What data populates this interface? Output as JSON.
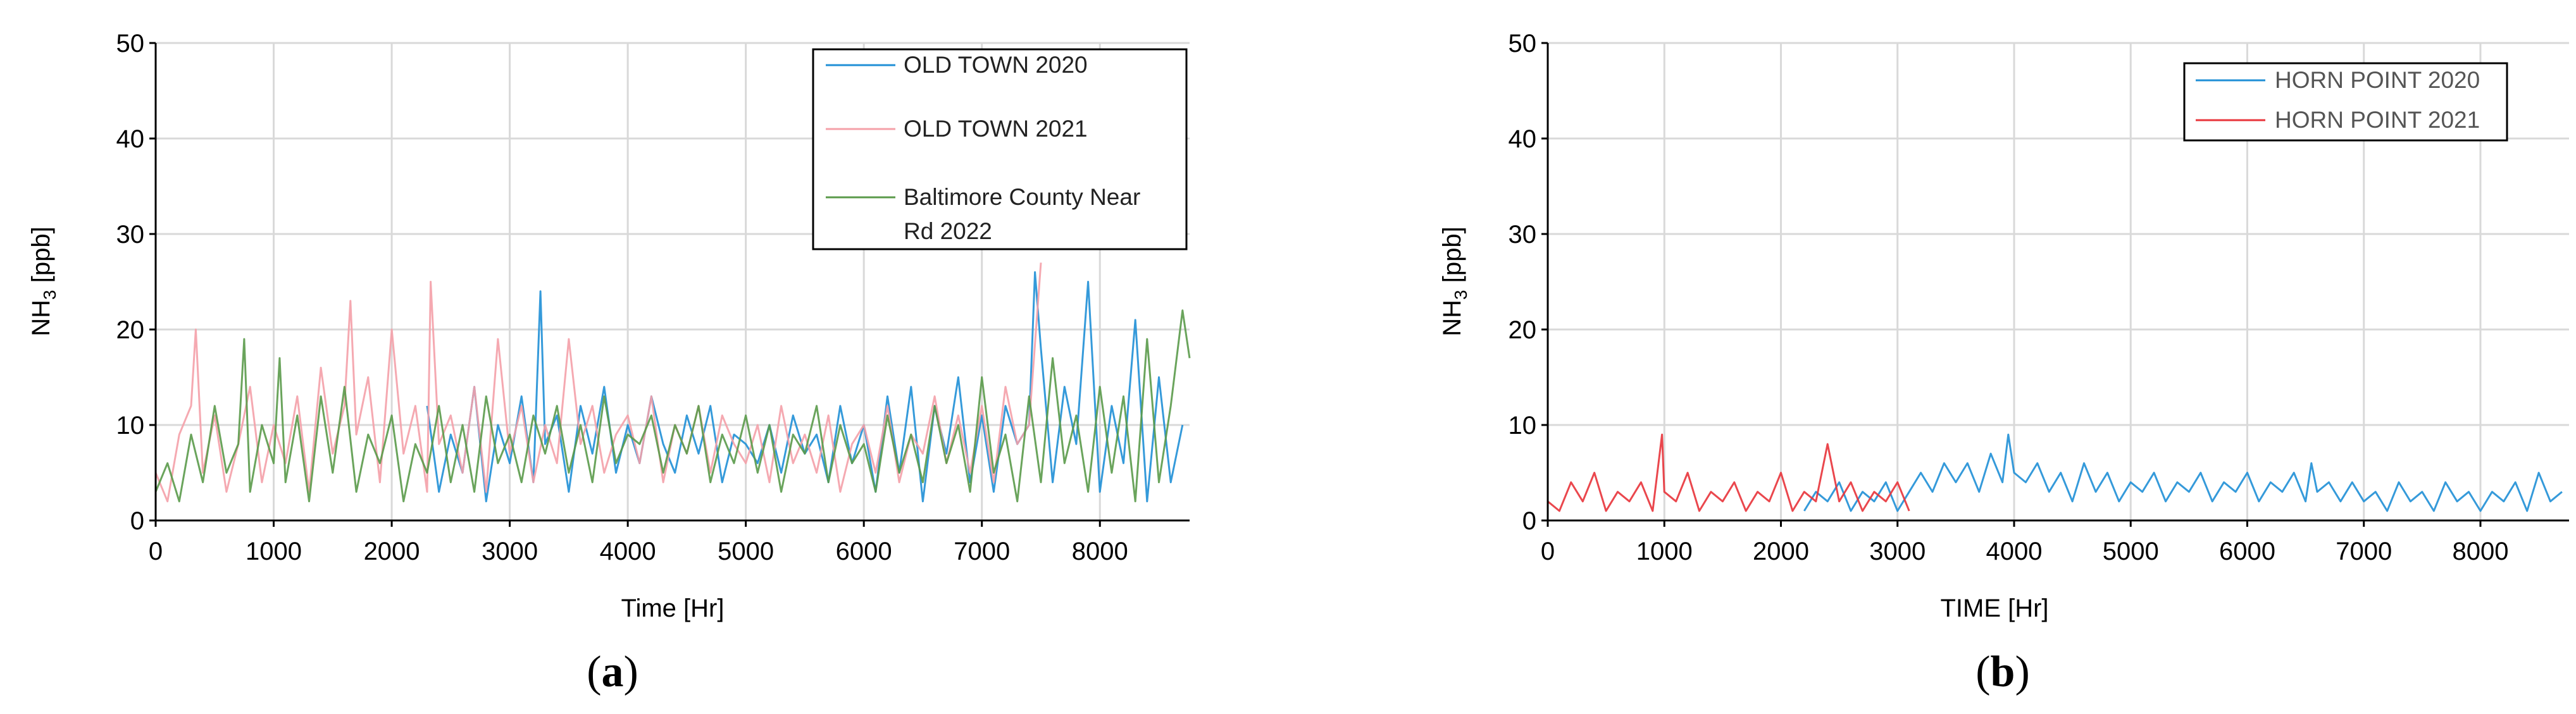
{
  "colors": {
    "old_town_2020": "#1f8fd6",
    "old_town_2021": "#f4a0a8",
    "baltimore_2022": "#5a9a4a",
    "horn_point_2020": "#1f8fd6",
    "horn_point_2021": "#e8333a",
    "grid": "#d9d9d9",
    "axis": "#000000"
  },
  "panels": [
    {
      "caption_open": "(",
      "caption_letter": "a",
      "caption_close": ")",
      "ylabel_main": "NH",
      "ylabel_sub": "3",
      "ylabel_unit": " [ppb]",
      "legend": [
        "OLD TOWN 2020",
        "OLD TOWN 2021",
        "Baltimore County Near",
        "Rd 2022"
      ]
    },
    {
      "caption_open": "(",
      "caption_letter": "b",
      "caption_close": ")",
      "ylabel_main": "NH",
      "ylabel_sub": "3",
      "ylabel_unit": " [ppb]",
      "legend": [
        "HORN POINT 2020",
        "HORN POINT 2021"
      ]
    }
  ],
  "chart_data": [
    {
      "type": "line",
      "xlabel": "Time [Hr]",
      "ylabel": "NH3 [ppb]",
      "xlim": [
        0,
        8760
      ],
      "ylim": [
        0,
        50
      ],
      "xticks": [
        0,
        1000,
        2000,
        3000,
        4000,
        5000,
        6000,
        7000,
        8000
      ],
      "yticks": [
        0,
        10,
        20,
        30,
        40,
        50
      ],
      "grid": true,
      "legend_position": "top-right",
      "series": [
        {
          "name": "OLD TOWN 2020",
          "color": "#1f8fd6",
          "x": [
            2300,
            2400,
            2500,
            2600,
            2700,
            2800,
            2900,
            3000,
            3100,
            3200,
            3260,
            3300,
            3400,
            3500,
            3600,
            3700,
            3800,
            3900,
            4000,
            4100,
            4200,
            4300,
            4400,
            4500,
            4600,
            4700,
            4800,
            4900,
            5000,
            5100,
            5200,
            5300,
            5400,
            5500,
            5600,
            5700,
            5800,
            5900,
            6000,
            6100,
            6200,
            6300,
            6400,
            6500,
            6600,
            6700,
            6800,
            6900,
            7000,
            7100,
            7200,
            7300,
            7400,
            7450,
            7500,
            7600,
            7700,
            7800,
            7900,
            8000,
            8100,
            8200,
            8300,
            8400,
            8500,
            8600,
            8700
          ],
          "y": [
            12,
            3,
            9,
            5,
            14,
            2,
            10,
            6,
            13,
            4,
            24,
            8,
            11,
            3,
            12,
            7,
            14,
            5,
            10,
            6,
            13,
            8,
            5,
            11,
            7,
            12,
            4,
            9,
            8,
            6,
            10,
            5,
            11,
            7,
            9,
            4,
            12,
            6,
            10,
            3,
            13,
            5,
            14,
            2,
            12,
            7,
            15,
            4,
            11,
            3,
            12,
            8,
            10,
            26,
            18,
            4,
            14,
            8,
            25,
            3,
            12,
            6,
            21,
            2,
            15,
            4,
            10
          ]
        },
        {
          "name": "OLD TOWN 2021",
          "color": "#f4a0a8",
          "x": [
            0,
            100,
            200,
            300,
            340,
            400,
            500,
            600,
            700,
            800,
            900,
            1000,
            1100,
            1200,
            1300,
            1400,
            1500,
            1600,
            1650,
            1700,
            1800,
            1900,
            2000,
            2100,
            2200,
            2300,
            2330,
            2400,
            2500,
            2600,
            2700,
            2800,
            2900,
            3000,
            3100,
            3200,
            3300,
            3400,
            3500,
            3600,
            3700,
            3800,
            3900,
            4000,
            4100,
            4200,
            4300,
            4400,
            4500,
            4600,
            4700,
            4800,
            4900,
            5000,
            5100,
            5200,
            5300,
            5400,
            5500,
            5600,
            5700,
            5800,
            5900,
            6000,
            6100,
            6200,
            6300,
            6400,
            6500,
            6600,
            6700,
            6800,
            6900,
            7000,
            7100,
            7200,
            7300,
            7400,
            7500
          ],
          "y": [
            5,
            2,
            9,
            12,
            20,
            5,
            11,
            3,
            8,
            14,
            4,
            10,
            6,
            13,
            3,
            16,
            7,
            12,
            23,
            9,
            15,
            4,
            20,
            7,
            12,
            3,
            25,
            8,
            11,
            5,
            14,
            3,
            19,
            7,
            12,
            4,
            10,
            6,
            19,
            8,
            12,
            5,
            9,
            11,
            6,
            13,
            4,
            10,
            7,
            12,
            5,
            11,
            8,
            6,
            10,
            4,
            12,
            6,
            9,
            5,
            11,
            3,
            8,
            10,
            5,
            12,
            4,
            9,
            7,
            13,
            6,
            11,
            5,
            12,
            4,
            14,
            8,
            10,
            27
          ]
        },
        {
          "name": "Baltimore County Near Rd 2022",
          "color": "#5a9a4a",
          "x": [
            0,
            100,
            200,
            300,
            400,
            500,
            600,
            700,
            750,
            800,
            900,
            1000,
            1050,
            1100,
            1200,
            1300,
            1400,
            1500,
            1600,
            1700,
            1800,
            1900,
            2000,
            2100,
            2200,
            2300,
            2400,
            2500,
            2600,
            2700,
            2800,
            2900,
            3000,
            3100,
            3200,
            3300,
            3400,
            3500,
            3600,
            3700,
            3800,
            3900,
            4000,
            4100,
            4200,
            4300,
            4400,
            4500,
            4600,
            4700,
            4800,
            4900,
            5000,
            5100,
            5200,
            5300,
            5400,
            5500,
            5600,
            5700,
            5800,
            5900,
            6000,
            6100,
            6200,
            6300,
            6400,
            6500,
            6600,
            6700,
            6800,
            6900,
            7000,
            7100,
            7200,
            7300,
            7400,
            7500,
            7600,
            7700,
            7800,
            7900,
            8000,
            8100,
            8200,
            8300,
            8400,
            8500,
            8600,
            8700,
            8760
          ],
          "y": [
            3,
            6,
            2,
            9,
            4,
            12,
            5,
            8,
            19,
            3,
            10,
            6,
            17,
            4,
            11,
            2,
            13,
            5,
            14,
            3,
            9,
            6,
            11,
            2,
            8,
            5,
            12,
            4,
            10,
            3,
            13,
            6,
            9,
            4,
            11,
            7,
            12,
            5,
            10,
            4,
            13,
            6,
            9,
            8,
            11,
            5,
            10,
            7,
            12,
            4,
            9,
            6,
            11,
            5,
            10,
            3,
            9,
            7,
            12,
            4,
            10,
            6,
            8,
            3,
            11,
            5,
            9,
            4,
            12,
            6,
            10,
            3,
            15,
            5,
            9,
            2,
            13,
            4,
            17,
            6,
            11,
            3,
            14,
            5,
            13,
            2,
            19,
            4,
            12,
            22,
            17
          ]
        }
      ]
    },
    {
      "type": "line",
      "xlabel": "TIME [Hr]",
      "ylabel": "NH3 [ppb]",
      "xlim": [
        0,
        8760
      ],
      "ylim": [
        0,
        50
      ],
      "xticks": [
        0,
        1000,
        2000,
        3000,
        4000,
        5000,
        6000,
        7000,
        8000
      ],
      "yticks": [
        0,
        10,
        20,
        30,
        40,
        50
      ],
      "grid": true,
      "legend_position": "top-right",
      "series": [
        {
          "name": "HORN POINT 2020",
          "color": "#1f8fd6",
          "x": [
            2200,
            2300,
            2400,
            2500,
            2600,
            2700,
            2800,
            2900,
            3000,
            3100,
            3200,
            3300,
            3400,
            3500,
            3600,
            3700,
            3800,
            3900,
            3950,
            4000,
            4100,
            4200,
            4300,
            4400,
            4500,
            4600,
            4700,
            4800,
            4900,
            5000,
            5100,
            5200,
            5300,
            5400,
            5500,
            5600,
            5700,
            5800,
            5900,
            6000,
            6100,
            6200,
            6300,
            6400,
            6500,
            6550,
            6600,
            6700,
            6800,
            6900,
            7000,
            7100,
            7200,
            7300,
            7400,
            7500,
            7600,
            7700,
            7800,
            7900,
            8000,
            8100,
            8200,
            8300,
            8400,
            8500,
            8600,
            8700
          ],
          "y": [
            1,
            3,
            2,
            4,
            1,
            3,
            2,
            4,
            1,
            3,
            5,
            3,
            6,
            4,
            6,
            3,
            7,
            4,
            9,
            5,
            4,
            6,
            3,
            5,
            2,
            6,
            3,
            5,
            2,
            4,
            3,
            5,
            2,
            4,
            3,
            5,
            2,
            4,
            3,
            5,
            2,
            4,
            3,
            5,
            2,
            6,
            3,
            4,
            2,
            4,
            2,
            3,
            1,
            4,
            2,
            3,
            1,
            4,
            2,
            3,
            1,
            3,
            2,
            4,
            1,
            5,
            2,
            3
          ]
        },
        {
          "name": "HORN POINT 2021",
          "color": "#e8333a",
          "x": [
            0,
            100,
            200,
            300,
            400,
            500,
            600,
            700,
            800,
            900,
            980,
            1000,
            1100,
            1200,
            1300,
            1400,
            1500,
            1600,
            1700,
            1800,
            1900,
            2000,
            2100,
            2200,
            2300,
            2400,
            2500,
            2600,
            2700,
            2800,
            2900,
            3000,
            3100
          ],
          "y": [
            2,
            1,
            4,
            2,
            5,
            1,
            3,
            2,
            4,
            1,
            9,
            3,
            2,
            5,
            1,
            3,
            2,
            4,
            1,
            3,
            2,
            5,
            1,
            3,
            2,
            8,
            2,
            4,
            1,
            3,
            2,
            4,
            1
          ]
        }
      ]
    }
  ]
}
